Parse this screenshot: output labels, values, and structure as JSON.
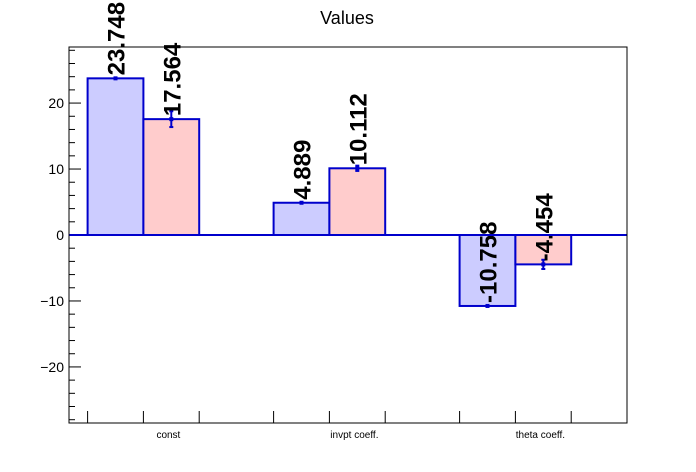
{
  "chart_data": {
    "type": "bar",
    "title": "Values",
    "categories": [
      "const",
      "invpt coeff.",
      "theta coeff."
    ],
    "series": [
      {
        "color": "#ccccff",
        "edge_color": "#0000cc",
        "values": [
          23.748,
          4.889,
          -10.758
        ],
        "labels": [
          "23.748",
          "4.889",
          "-10.758"
        ],
        "errors": [
          0.0,
          0.0,
          0.0
        ]
      },
      {
        "color": "#ffcccc",
        "edge_color": "#0000cc",
        "values": [
          17.564,
          10.112,
          -4.454
        ],
        "labels": [
          "17.564",
          "10.112",
          "-4.454"
        ],
        "errors": [
          1.2,
          0.4,
          0.7
        ]
      }
    ],
    "yticks": [
      -20,
      -10,
      0,
      10,
      20
    ],
    "ytick_labels": [
      "−20",
      "−10",
      "0",
      "10",
      "20"
    ],
    "ylim": [
      -28.5,
      28.5
    ],
    "xlabel": "",
    "ylabel": "",
    "grid": false,
    "legend": "none"
  }
}
